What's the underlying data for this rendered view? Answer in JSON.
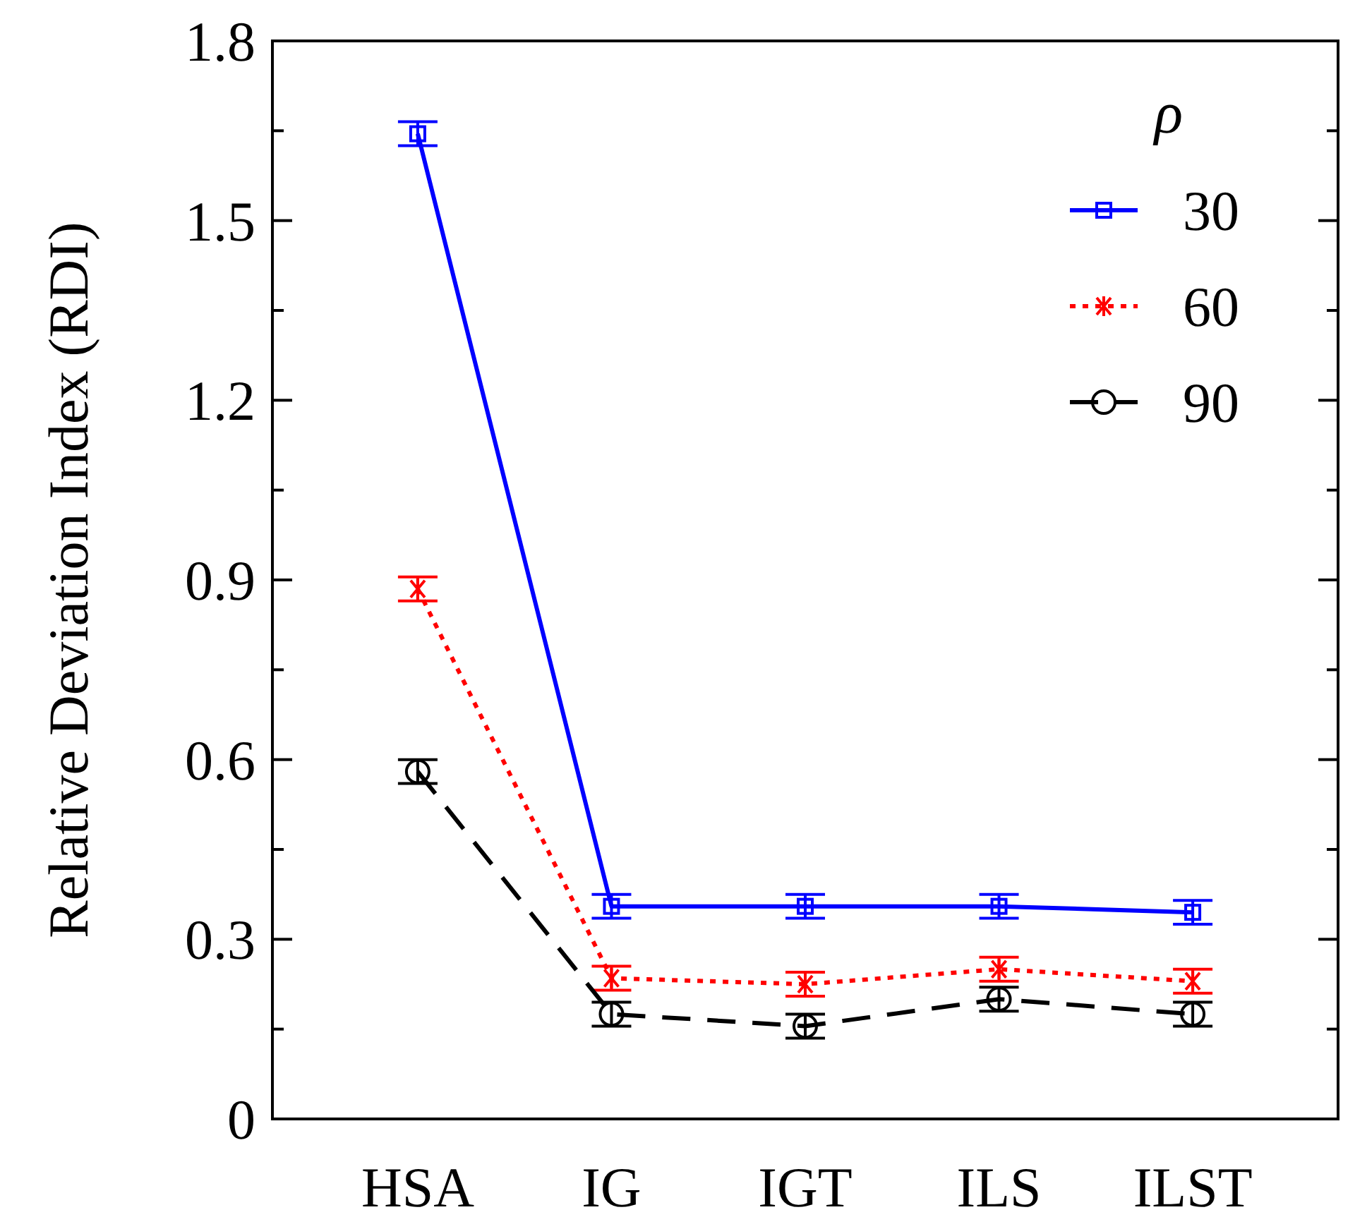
{
  "chart_data": {
    "type": "line",
    "ylabel": "Relative Deviation Index (RDI)",
    "legend_title": "ρ",
    "categories": [
      "HSA",
      "IG",
      "IGT",
      "ILS",
      "ILST"
    ],
    "series": [
      {
        "name": "30",
        "color": "#0000ff",
        "marker": "square",
        "line_style": "solid",
        "values": [
          1.645,
          0.355,
          0.355,
          0.355,
          0.345
        ],
        "errors": [
          0.02,
          0.02,
          0.02,
          0.02,
          0.02
        ]
      },
      {
        "name": "60",
        "color": "#ff0000",
        "marker": "cross",
        "line_style": "dotted",
        "values": [
          0.885,
          0.235,
          0.225,
          0.25,
          0.23
        ],
        "errors": [
          0.02,
          0.02,
          0.02,
          0.02,
          0.02
        ]
      },
      {
        "name": "90",
        "color": "#000000",
        "marker": "circle",
        "line_style": "dashed",
        "values": [
          0.58,
          0.175,
          0.155,
          0.2,
          0.175
        ],
        "errors": [
          0.02,
          0.02,
          0.02,
          0.02,
          0.02
        ]
      }
    ],
    "ylim": [
      0,
      1.8
    ],
    "yticks": [
      0,
      0.3,
      0.6,
      0.9,
      1.2,
      1.5,
      1.8
    ],
    "legend": "top right",
    "grid": false
  }
}
